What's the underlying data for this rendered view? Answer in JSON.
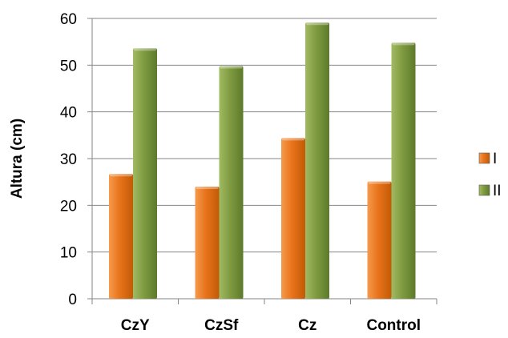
{
  "chart_data": {
    "type": "bar",
    "title": "",
    "xlabel": "",
    "ylabel": "Altura (cm)",
    "categories": [
      "CzY",
      "CzSf",
      "Cz",
      "Control"
    ],
    "series": [
      {
        "name": "I",
        "values": [
          26.7,
          24.0,
          34.4,
          25.1
        ],
        "color": "#e36c09"
      },
      {
        "name": "II",
        "values": [
          53.6,
          49.8,
          59.1,
          54.8
        ],
        "color": "#77933c"
      }
    ],
    "ylim": [
      0,
      60
    ],
    "yticks": [
      0,
      10,
      20,
      30,
      40,
      50,
      60
    ],
    "grid": true,
    "legend": "right"
  }
}
